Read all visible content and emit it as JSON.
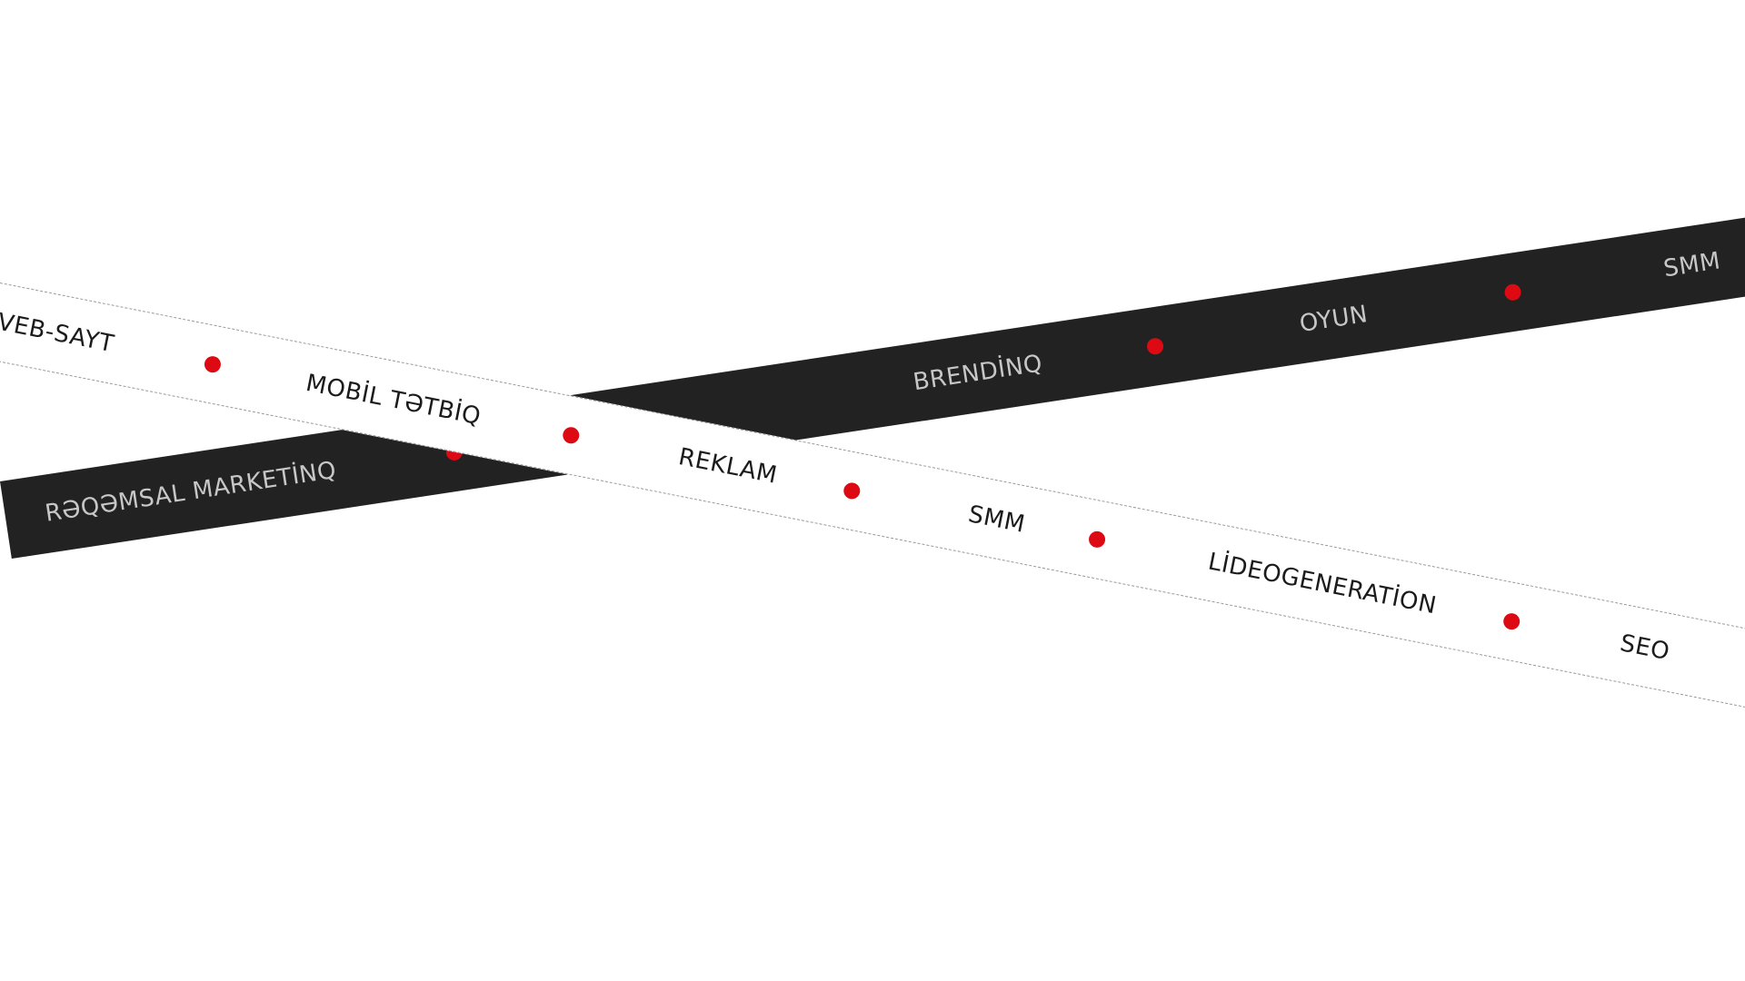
{
  "accent_color": "#dd0a14",
  "dark_ribbon": {
    "background": "#222222",
    "text_color": "#c7c7c7",
    "items": [
      "RƏQƏMSAL MARKETİNQ",
      "BRENDİNQ",
      "OYUN",
      "SMM"
    ]
  },
  "light_ribbon": {
    "background": "#ffffff",
    "text_color": "#1b1b1b",
    "items": [
      "VEB-SAYT",
      "MOBİL TƏTBİQ",
      "REKLAM",
      "SMM",
      "LİDEOGENERATİON",
      "SEO"
    ]
  }
}
